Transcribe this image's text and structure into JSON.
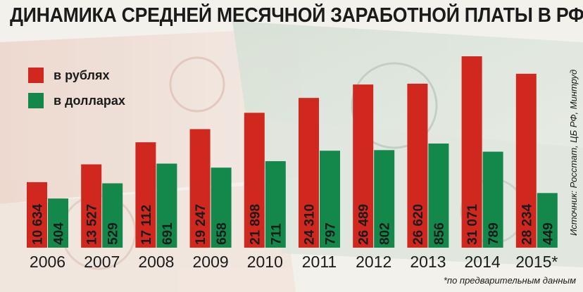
{
  "title": "ДИНАМИКА СРЕДНЕЙ МЕСЯЧНОЙ ЗАРАБОТНОЙ ПЛАТЫ В РФ",
  "legend": [
    {
      "label": "в рублях",
      "color": "#d0281e"
    },
    {
      "label": "в долларах",
      "color": "#13884a"
    }
  ],
  "source": "Источник: Росстат, ЦБ РФ, Минтруд",
  "footnote": "*по предварительным данным",
  "chart_data": {
    "type": "bar",
    "categories": [
      "2006",
      "2007",
      "2008",
      "2009",
      "2010",
      "2011",
      "2012",
      "2013",
      "2014",
      "2015*"
    ],
    "series": [
      {
        "name": "в рублях",
        "values": [
          10634,
          13527,
          17112,
          19247,
          21898,
          24310,
          26489,
          26620,
          31071,
          28234
        ],
        "labels": [
          "10 634",
          "13 527",
          "17 112",
          "19 247",
          "21 898",
          "24 310",
          "26 489",
          "26 620",
          "31 071",
          "28 234"
        ],
        "color": "#d0281e"
      },
      {
        "name": "в долларах",
        "values": [
          404,
          529,
          691,
          658,
          711,
          797,
          802,
          856,
          789,
          449
        ],
        "labels": [
          "404",
          "529",
          "691",
          "658",
          "711",
          "797",
          "802",
          "856",
          "789",
          "449"
        ],
        "color": "#13884a"
      }
    ],
    "title": "ДИНАМИКА СРЕДНЕЙ МЕСЯЧНОЙ ЗАРАБОТНОЙ ПЛАТЫ В РФ",
    "grid": false,
    "legend_position": "top-left"
  }
}
